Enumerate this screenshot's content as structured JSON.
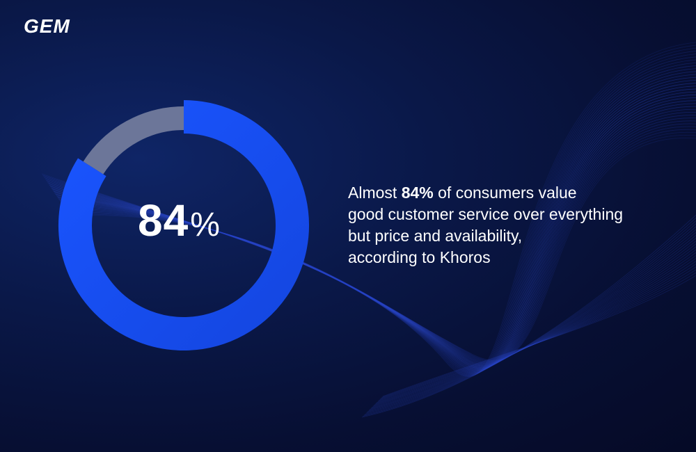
{
  "brand": {
    "logo_text": "GEM"
  },
  "colors": {
    "accent": "#1a55ff",
    "track": "#6c7699",
    "background": "#070f33",
    "waves": "#2b47c9"
  },
  "chart_data": {
    "type": "pie",
    "variant": "donut",
    "categories": [
      "Value good customer service",
      "Other"
    ],
    "values": [
      84,
      16
    ],
    "center_label": {
      "value": "84",
      "unit": "%"
    }
  },
  "caption": {
    "lead": "Almost ",
    "highlight": "84%",
    "line1_rest": " of consumers value",
    "line2": "good customer service over everything",
    "line3": "but price and availability,",
    "line4": "according to Khoros"
  }
}
